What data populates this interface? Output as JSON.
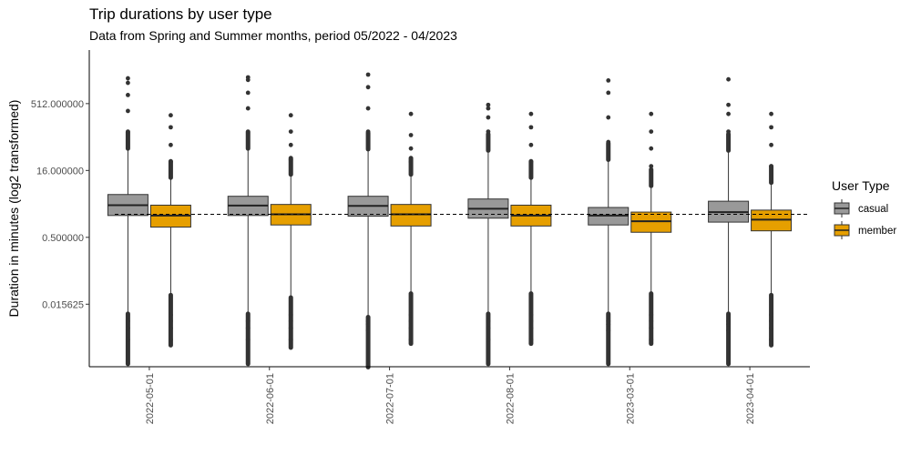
{
  "chart_data": {
    "type": "boxplot",
    "title": "Trip durations by user type",
    "subtitle": "Data from Spring and Summer months, period 05/2022 - 04/2023",
    "xlabel": "",
    "ylabel": "Duration in minutes (log2 transformed)",
    "y_scale": "log2",
    "ylim": [
      0.0013,
      2300
    ],
    "y_ticks": [
      0.015625,
      0.5,
      16,
      512
    ],
    "y_tick_labels": [
      "0.015625",
      "0.500000",
      "16.000000",
      "512.000000"
    ],
    "categories": [
      "2022-05-01",
      "2022-06-01",
      "2022-07-01",
      "2022-08-01",
      "2023-03-01",
      "2023-04-01"
    ],
    "reference_line": {
      "y": 1.65,
      "style": "dashed"
    },
    "legend": {
      "title": "User Type",
      "position": "right"
    },
    "series": [
      {
        "name": "casual",
        "color": "#999999",
        "boxes": [
          {
            "whisker_low": 0.0095,
            "q1": 1.55,
            "median": 2.65,
            "q3": 4.6,
            "whisker_high": 50,
            "outliers_low": [
              0.0025,
              0.0045,
              0.0065
            ],
            "outliers_high": [
              120,
              350,
              800,
              1500,
              1900
            ]
          },
          {
            "whisker_low": 0.0095,
            "q1": 1.55,
            "median": 2.6,
            "q3": 4.2,
            "whisker_high": 50,
            "outliers_low": [
              0.0025,
              0.0045,
              0.0065
            ],
            "outliers_high": [
              120,
              400,
              900,
              1750,
              2000
            ]
          },
          {
            "whisker_low": 0.008,
            "q1": 1.5,
            "median": 2.55,
            "q3": 4.2,
            "whisker_high": 48,
            "outliers_low": [
              0.004,
              0.0055,
              0.0065
            ],
            "outliers_high": [
              120,
              400,
              1200,
              2300
            ]
          },
          {
            "whisker_low": 0.0095,
            "q1": 1.35,
            "median": 2.2,
            "q3": 3.65,
            "whisker_high": 45,
            "outliers_low": [
              0.0025,
              0.0045,
              0.0065
            ],
            "outliers_high": [
              120,
              250,
              400,
              480
            ]
          },
          {
            "whisker_low": 0.0095,
            "q1": 0.95,
            "median": 1.55,
            "q3": 2.35,
            "whisker_high": 28,
            "outliers_low": [
              0.004,
              0.0055,
              0.0065
            ],
            "outliers_high": [
              70,
              250,
              900,
              1700
            ]
          },
          {
            "whisker_low": 0.0095,
            "q1": 1.1,
            "median": 1.85,
            "q3": 3.25,
            "whisker_high": 45,
            "outliers_low": [
              0.004,
              0.0055,
              0.0065
            ],
            "outliers_high": [
              120,
              300,
              480,
              1800
            ]
          }
        ]
      },
      {
        "name": "member",
        "color": "#E69F00",
        "boxes": [
          {
            "whisker_low": 0.025,
            "q1": 0.85,
            "median": 1.55,
            "q3": 2.65,
            "whisker_high": 11,
            "outliers_low": [
              0.0025,
              0.0045,
              0.0065,
              0.009
            ],
            "outliers_high": [
              25,
              60,
              150,
              280
            ]
          },
          {
            "whisker_low": 0.022,
            "q1": 0.95,
            "median": 1.65,
            "q3": 2.75,
            "whisker_high": 13,
            "outliers_low": [
              0.0025,
              0.0045,
              0.0065,
              0.009
            ],
            "outliers_high": [
              28,
              60,
              120,
              280
            ]
          },
          {
            "whisker_low": 0.027,
            "q1": 0.9,
            "median": 1.65,
            "q3": 2.75,
            "whisker_high": 13,
            "outliers_low": [
              0.0025,
              0.0045,
              0.0065,
              0.009
            ],
            "outliers_high": [
              25,
              50,
              100,
              300
            ]
          },
          {
            "whisker_low": 0.027,
            "q1": 0.9,
            "median": 1.55,
            "q3": 2.65,
            "whisker_high": 11,
            "outliers_low": [
              0.0025,
              0.0045,
              0.0065,
              0.009
            ],
            "outliers_high": [
              25,
              60,
              150,
              300
            ]
          },
          {
            "whisker_low": 0.027,
            "q1": 0.65,
            "median": 1.15,
            "q3": 1.85,
            "whisker_high": 7.2,
            "outliers_low": [
              0.0025,
              0.0045,
              0.0065,
              0.009
            ],
            "outliers_high": [
              20,
              50,
              120,
              300
            ]
          },
          {
            "whisker_low": 0.025,
            "q1": 0.7,
            "median": 1.25,
            "q3": 2.05,
            "whisker_high": 8.5,
            "outliers_low": [
              0.0025,
              0.0045,
              0.0065,
              0.009
            ],
            "outliers_high": [
              20,
              60,
              150,
              300
            ]
          }
        ]
      }
    ]
  }
}
